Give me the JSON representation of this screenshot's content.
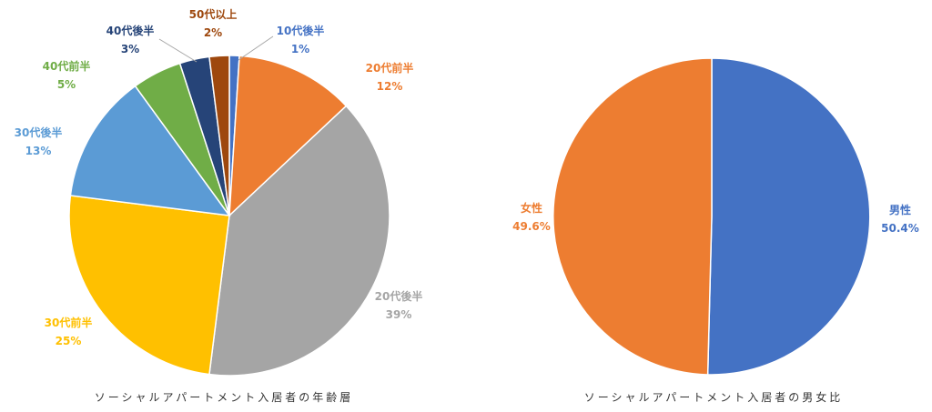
{
  "chart_data": [
    {
      "type": "pie",
      "title": "ソーシャルアパートメント入居者の年齢層",
      "slices": [
        {
          "name": "10代後半",
          "value_label": "1%",
          "value": 1,
          "color": "#4472C4"
        },
        {
          "name": "20代前半",
          "value_label": "12%",
          "value": 12,
          "color": "#ED7D31"
        },
        {
          "name": "20代後半",
          "value_label": "39%",
          "value": 39,
          "color": "#A5A5A5"
        },
        {
          "name": "30代前半",
          "value_label": "25%",
          "value": 25,
          "color": "#FFC000"
        },
        {
          "name": "30代後半",
          "value_label": "13%",
          "value": 13,
          "color": "#5B9BD5"
        },
        {
          "name": "40代前半",
          "value_label": "5%",
          "value": 5,
          "color": "#70AD47"
        },
        {
          "name": "40代後半",
          "value_label": "3%",
          "value": 3,
          "color": "#264478"
        },
        {
          "name": "50代以上",
          "value_label": "2%",
          "value": 2,
          "color": "#9E480E"
        }
      ]
    },
    {
      "type": "pie",
      "title": "ソーシャルアパートメント入居者の男女比",
      "slices": [
        {
          "name": "男性",
          "value_label": "50.4%",
          "value": 50.4,
          "color": "#4472C4"
        },
        {
          "name": "女性",
          "value_label": "49.6%",
          "value": 49.6,
          "color": "#ED7D31"
        }
      ]
    }
  ]
}
